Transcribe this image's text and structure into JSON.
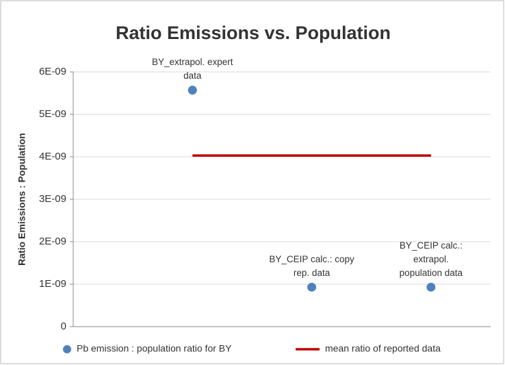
{
  "chart_data": {
    "type": "scatter",
    "title": "Ratio Emissions vs. Population",
    "y_label": "Ratio Emissions : Population",
    "xlim": [
      0,
      3.5
    ],
    "ylim": [
      0,
      6e-09
    ],
    "yticks": [
      0,
      {
        "value": 1e-09,
        "label": "1E-09"
      },
      {
        "value": 2e-09,
        "label": "2E-09"
      },
      {
        "value": 3e-09,
        "label": "3E-09"
      },
      {
        "value": 4e-09,
        "label": "4E-09"
      },
      {
        "value": 5e-09,
        "label": "5E-09"
      },
      {
        "value": 6e-09,
        "label": "6E-09"
      }
    ],
    "grid": true,
    "legend": "bottom",
    "series": [
      {
        "name": "Pb emission : population ratio for BY",
        "color": "#4f81bd",
        "mode": "markers",
        "x": [
          1,
          2,
          3
        ],
        "values": [
          5.57e-09,
          9.3e-10,
          9.3e-10
        ],
        "labels": [
          [
            "BY_extrapol. expert",
            "data"
          ],
          [
            "BY_CEIP calc.: copy",
            "rep. data"
          ],
          [
            "BY_CEIP calc.:",
            "extrapol.",
            "population data"
          ]
        ]
      },
      {
        "name": "mean ratio of reported data",
        "color": "#c00000",
        "mode": "line",
        "x": [
          1,
          3
        ],
        "values": [
          4.03e-09,
          4.03e-09
        ]
      }
    ]
  }
}
